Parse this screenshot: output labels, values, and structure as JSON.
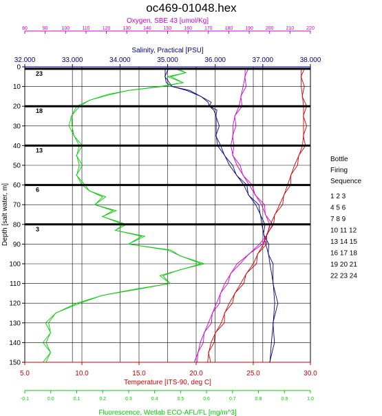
{
  "chart_data": {
    "type": "line",
    "title": "oc469-01048.hex",
    "y_axis": {
      "label": "Depth [salt water, m]",
      "range": [
        0,
        150
      ],
      "ticks": [
        "0",
        "10",
        "20",
        "30",
        "40",
        "50",
        "60",
        "70",
        "80",
        "90",
        "100",
        "110",
        "120",
        "130",
        "140",
        "150"
      ]
    },
    "x_axes": [
      {
        "id": "oxygen",
        "label": "Oxygen, SBE 43 [umol/Kg]",
        "color": "#cc00cc",
        "range": [
          80,
          220
        ],
        "ticks": [
          "80",
          "90",
          "100",
          "110",
          "120",
          "130",
          "140",
          "150",
          "160",
          "170",
          "180",
          "190",
          "200",
          "210",
          "220"
        ]
      },
      {
        "id": "salinity",
        "label": "Salinity, Practical [PSU]",
        "color": "#000080",
        "range": [
          32,
          38
        ],
        "ticks": [
          "32.000",
          "33.000",
          "34.000",
          "35.000",
          "36.000",
          "37.000",
          "38.000"
        ]
      },
      {
        "id": "temperature",
        "label": "Temperature [ITS-90, deg C]",
        "color": "#cc0000",
        "range": [
          5,
          30
        ],
        "ticks": [
          "5.0",
          "10.0",
          "15.0",
          "20.0",
          "25.0",
          "30.0"
        ]
      },
      {
        "id": "fluorescence",
        "label": "Fluorescence, Wetlab ECO-AFL/FL [mg/m^3]",
        "color": "#00cc00",
        "range": [
          -0.1,
          1.0
        ],
        "ticks": [
          "-0.1",
          "0.0",
          "0.1",
          "0.2",
          "0.3",
          "0.4",
          "0.5",
          "0.6",
          "0.7",
          "0.8",
          "0.9",
          "1.0"
        ]
      }
    ],
    "series": [
      {
        "axis": "salinity",
        "color": "#000080",
        "depth": [
          1,
          5,
          8,
          10,
          12,
          15,
          18,
          20,
          22,
          25,
          30,
          35,
          40,
          45,
          50,
          55,
          60,
          65,
          70,
          75,
          80,
          85,
          90,
          95,
          100,
          110,
          120,
          130,
          140,
          150
        ],
        "x": [
          34.95,
          34.95,
          34.97,
          35.1,
          35.4,
          35.7,
          35.85,
          35.88,
          35.97,
          36.02,
          36.02,
          36.02,
          36.05,
          36.2,
          36.3,
          36.45,
          36.6,
          36.7,
          36.85,
          36.95,
          36.98,
          37.02,
          37.06,
          37.12,
          37.15,
          37.22,
          37.25,
          37.22,
          37.18,
          37.15
        ]
      },
      {
        "axis": "oxygen",
        "color": "#cc00cc",
        "depth": [
          1,
          5,
          10,
          15,
          20,
          25,
          30,
          35,
          40,
          45,
          50,
          55,
          60,
          65,
          70,
          75,
          80,
          85,
          90,
          95,
          100,
          105,
          110,
          115,
          120,
          125,
          130,
          135,
          140,
          145,
          150
        ],
        "x": [
          188,
          188,
          187,
          186,
          185,
          183,
          182,
          182,
          181,
          182,
          184,
          187,
          190,
          193,
          196,
          198,
          200,
          199,
          195,
          190,
          184,
          181,
          178,
          176,
          174,
          172,
          170,
          168,
          166,
          165,
          163
        ]
      },
      {
        "axis": "temperature",
        "color": "#cc0000",
        "depth": [
          1,
          5,
          10,
          15,
          20,
          25,
          30,
          35,
          40,
          45,
          50,
          55,
          60,
          65,
          70,
          75,
          80,
          85,
          90,
          95,
          100,
          105,
          110,
          115,
          120,
          125,
          130,
          135,
          140,
          145,
          150
        ],
        "x": [
          29.2,
          29.2,
          29.2,
          29.3,
          29.4,
          29.4,
          29.4,
          29.4,
          29.3,
          29.0,
          28.6,
          28.3,
          28.0,
          27.7,
          27.3,
          26.9,
          26.5,
          26.2,
          25.9,
          25.4,
          25.0,
          24.4,
          23.9,
          23.4,
          22.9,
          22.5,
          22.2,
          21.7,
          21.3,
          21.1,
          21.0
        ]
      },
      {
        "axis": "fluorescence",
        "color": "#00cc00",
        "depth": [
          1,
          3,
          5,
          8,
          10,
          12,
          14,
          17,
          20,
          25,
          30,
          35,
          40,
          45,
          50,
          55,
          60,
          63,
          66,
          70,
          73,
          76,
          80,
          83,
          86,
          90,
          93,
          96,
          100,
          103,
          106,
          110,
          113,
          116,
          120,
          125,
          130,
          135,
          140,
          145,
          150
        ],
        "x": [
          0.48,
          0.52,
          0.45,
          0.51,
          0.42,
          0.3,
          0.22,
          0.15,
          0.1,
          0.08,
          0.07,
          0.09,
          0.11,
          0.1,
          0.11,
          0.1,
          0.12,
          0.15,
          0.2,
          0.17,
          0.24,
          0.2,
          0.28,
          0.25,
          0.35,
          0.3,
          0.45,
          0.5,
          0.58,
          0.5,
          0.42,
          0.46,
          0.32,
          0.2,
          0.1,
          0.02,
          -0.02,
          0.0,
          -0.03,
          0.0,
          -0.03
        ]
      }
    ],
    "bottles": [
      {
        "depth": 1,
        "label": "23"
      },
      {
        "depth": 20,
        "label": "18"
      },
      {
        "depth": 40,
        "label": "13"
      },
      {
        "depth": 60,
        "label": "6"
      },
      {
        "depth": 80,
        "label": "3"
      }
    ],
    "legend": {
      "title_lines": [
        "Bottle",
        "Firing",
        "Sequence"
      ],
      "rows": [
        "1  2  3",
        "4  5  6",
        "7  8  9",
        "10 11 12",
        "13 14 15",
        "16 17 18",
        "19 20 21",
        "22 23 24"
      ]
    },
    "grid": true
  }
}
